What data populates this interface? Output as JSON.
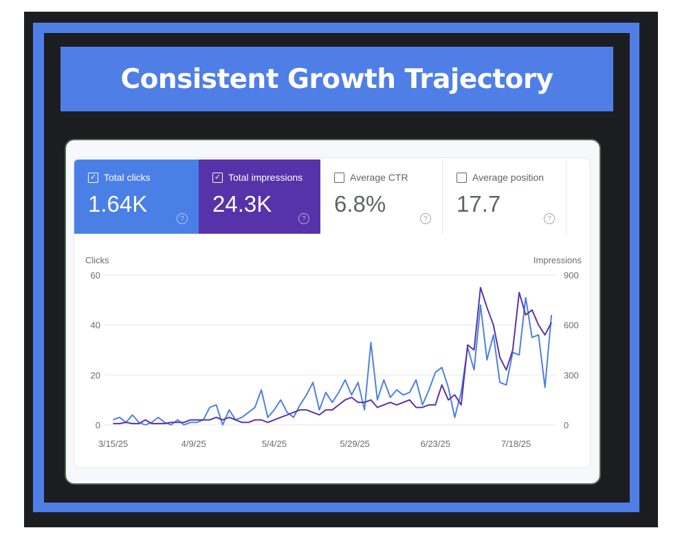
{
  "title": "Consistent Growth Trajectory",
  "metrics": [
    {
      "label": "Total clicks",
      "value": "1.64K",
      "checked": true,
      "color": "#4a7fe6"
    },
    {
      "label": "Total impressions",
      "value": "24.3K",
      "checked": true,
      "color": "#5633a8"
    },
    {
      "label": "Average CTR",
      "value": "6.8%",
      "checked": false
    },
    {
      "label": "Average position",
      "value": "17.7",
      "checked": false
    }
  ],
  "chart_data": {
    "type": "line",
    "left_axis_label": "Clicks",
    "right_axis_label": "Impressions",
    "left_ylim": [
      0,
      60
    ],
    "right_ylim": [
      0,
      900
    ],
    "left_ticks": [
      "0",
      "20",
      "40",
      "60"
    ],
    "right_ticks": [
      "0",
      "300",
      "600",
      "900"
    ],
    "x_ticks": [
      "3/15/25",
      "4/9/25",
      "5/4/25",
      "5/29/25",
      "6/23/25",
      "7/18/25"
    ],
    "grid": true,
    "x": [
      "3/15/25",
      "3/17/25",
      "3/19/25",
      "3/21/25",
      "3/23/25",
      "3/25/25",
      "3/27/25",
      "3/29/25",
      "3/31/25",
      "4/2/25",
      "4/4/25",
      "4/6/25",
      "4/8/25",
      "4/10/25",
      "4/12/25",
      "4/14/25",
      "4/16/25",
      "4/18/25",
      "4/20/25",
      "4/22/25",
      "4/24/25",
      "4/26/25",
      "4/28/25",
      "4/30/25",
      "5/2/25",
      "5/4/25",
      "5/6/25",
      "5/8/25",
      "5/10/25",
      "5/12/25",
      "5/14/25",
      "5/16/25",
      "5/18/25",
      "5/20/25",
      "5/22/25",
      "5/24/25",
      "5/26/25",
      "5/28/25",
      "5/30/25",
      "6/1/25",
      "6/3/25",
      "6/5/25",
      "6/7/25",
      "6/9/25",
      "6/11/25",
      "6/13/25",
      "6/15/25",
      "6/17/25",
      "6/19/25",
      "6/21/25",
      "6/23/25",
      "6/25/25",
      "6/27/25",
      "6/29/25",
      "7/1/25",
      "7/3/25",
      "7/5/25",
      "7/7/25",
      "7/9/25",
      "7/11/25",
      "7/13/25",
      "7/15/25",
      "7/17/25",
      "7/19/25",
      "7/21/25",
      "7/23/25",
      "7/25/25",
      "7/27/25",
      "7/29/25"
    ],
    "series": [
      {
        "name": "Clicks",
        "axis": "left",
        "color": "#4a7fe6",
        "values": [
          2,
          3,
          1,
          4,
          1,
          0,
          1,
          3,
          1,
          0,
          2,
          0,
          1,
          1,
          2,
          7,
          8,
          0,
          6,
          2,
          3,
          5,
          7,
          14,
          3,
          6,
          10,
          5,
          3,
          8,
          12,
          17,
          6,
          13,
          9,
          13,
          18,
          12,
          17,
          6,
          33,
          10,
          18,
          11,
          14,
          12,
          13,
          18,
          8,
          14,
          21,
          23,
          15,
          3,
          13,
          31,
          22,
          48,
          26,
          36,
          17,
          16,
          29,
          28,
          51,
          35,
          36,
          15,
          44
        ]
      },
      {
        "name": "Impressions",
        "axis": "right",
        "color": "#5633a8",
        "values": [
          8,
          8,
          15,
          8,
          8,
          30,
          8,
          8,
          8,
          15,
          15,
          15,
          30,
          30,
          30,
          30,
          45,
          30,
          45,
          30,
          15,
          15,
          30,
          30,
          15,
          30,
          45,
          60,
          75,
          90,
          90,
          75,
          60,
          90,
          90,
          120,
          150,
          165,
          135,
          135,
          150,
          105,
          120,
          135,
          120,
          135,
          150,
          105,
          105,
          120,
          120,
          240,
          150,
          180,
          120,
          480,
          450,
          825,
          705,
          600,
          405,
          330,
          450,
          795,
          660,
          690,
          600,
          540,
          615
        ]
      }
    ]
  }
}
